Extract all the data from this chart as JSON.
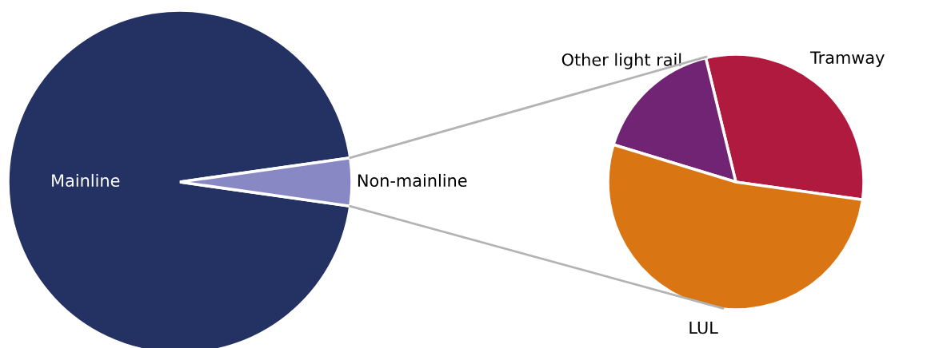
{
  "chart_data": [
    {
      "type": "pie",
      "categories": [
        "Mainline",
        "Non-mainline"
      ],
      "values": [
        95.5,
        4.5
      ],
      "colors": [
        "#243263",
        "#8888c4"
      ]
    },
    {
      "type": "pie",
      "categories": [
        "Tramway",
        "Other light rail",
        "LUL"
      ],
      "values": [
        31,
        16.5,
        52.5
      ],
      "colors": [
        "#b01a3e",
        "#702473",
        "#d97512"
      ]
    }
  ]
}
